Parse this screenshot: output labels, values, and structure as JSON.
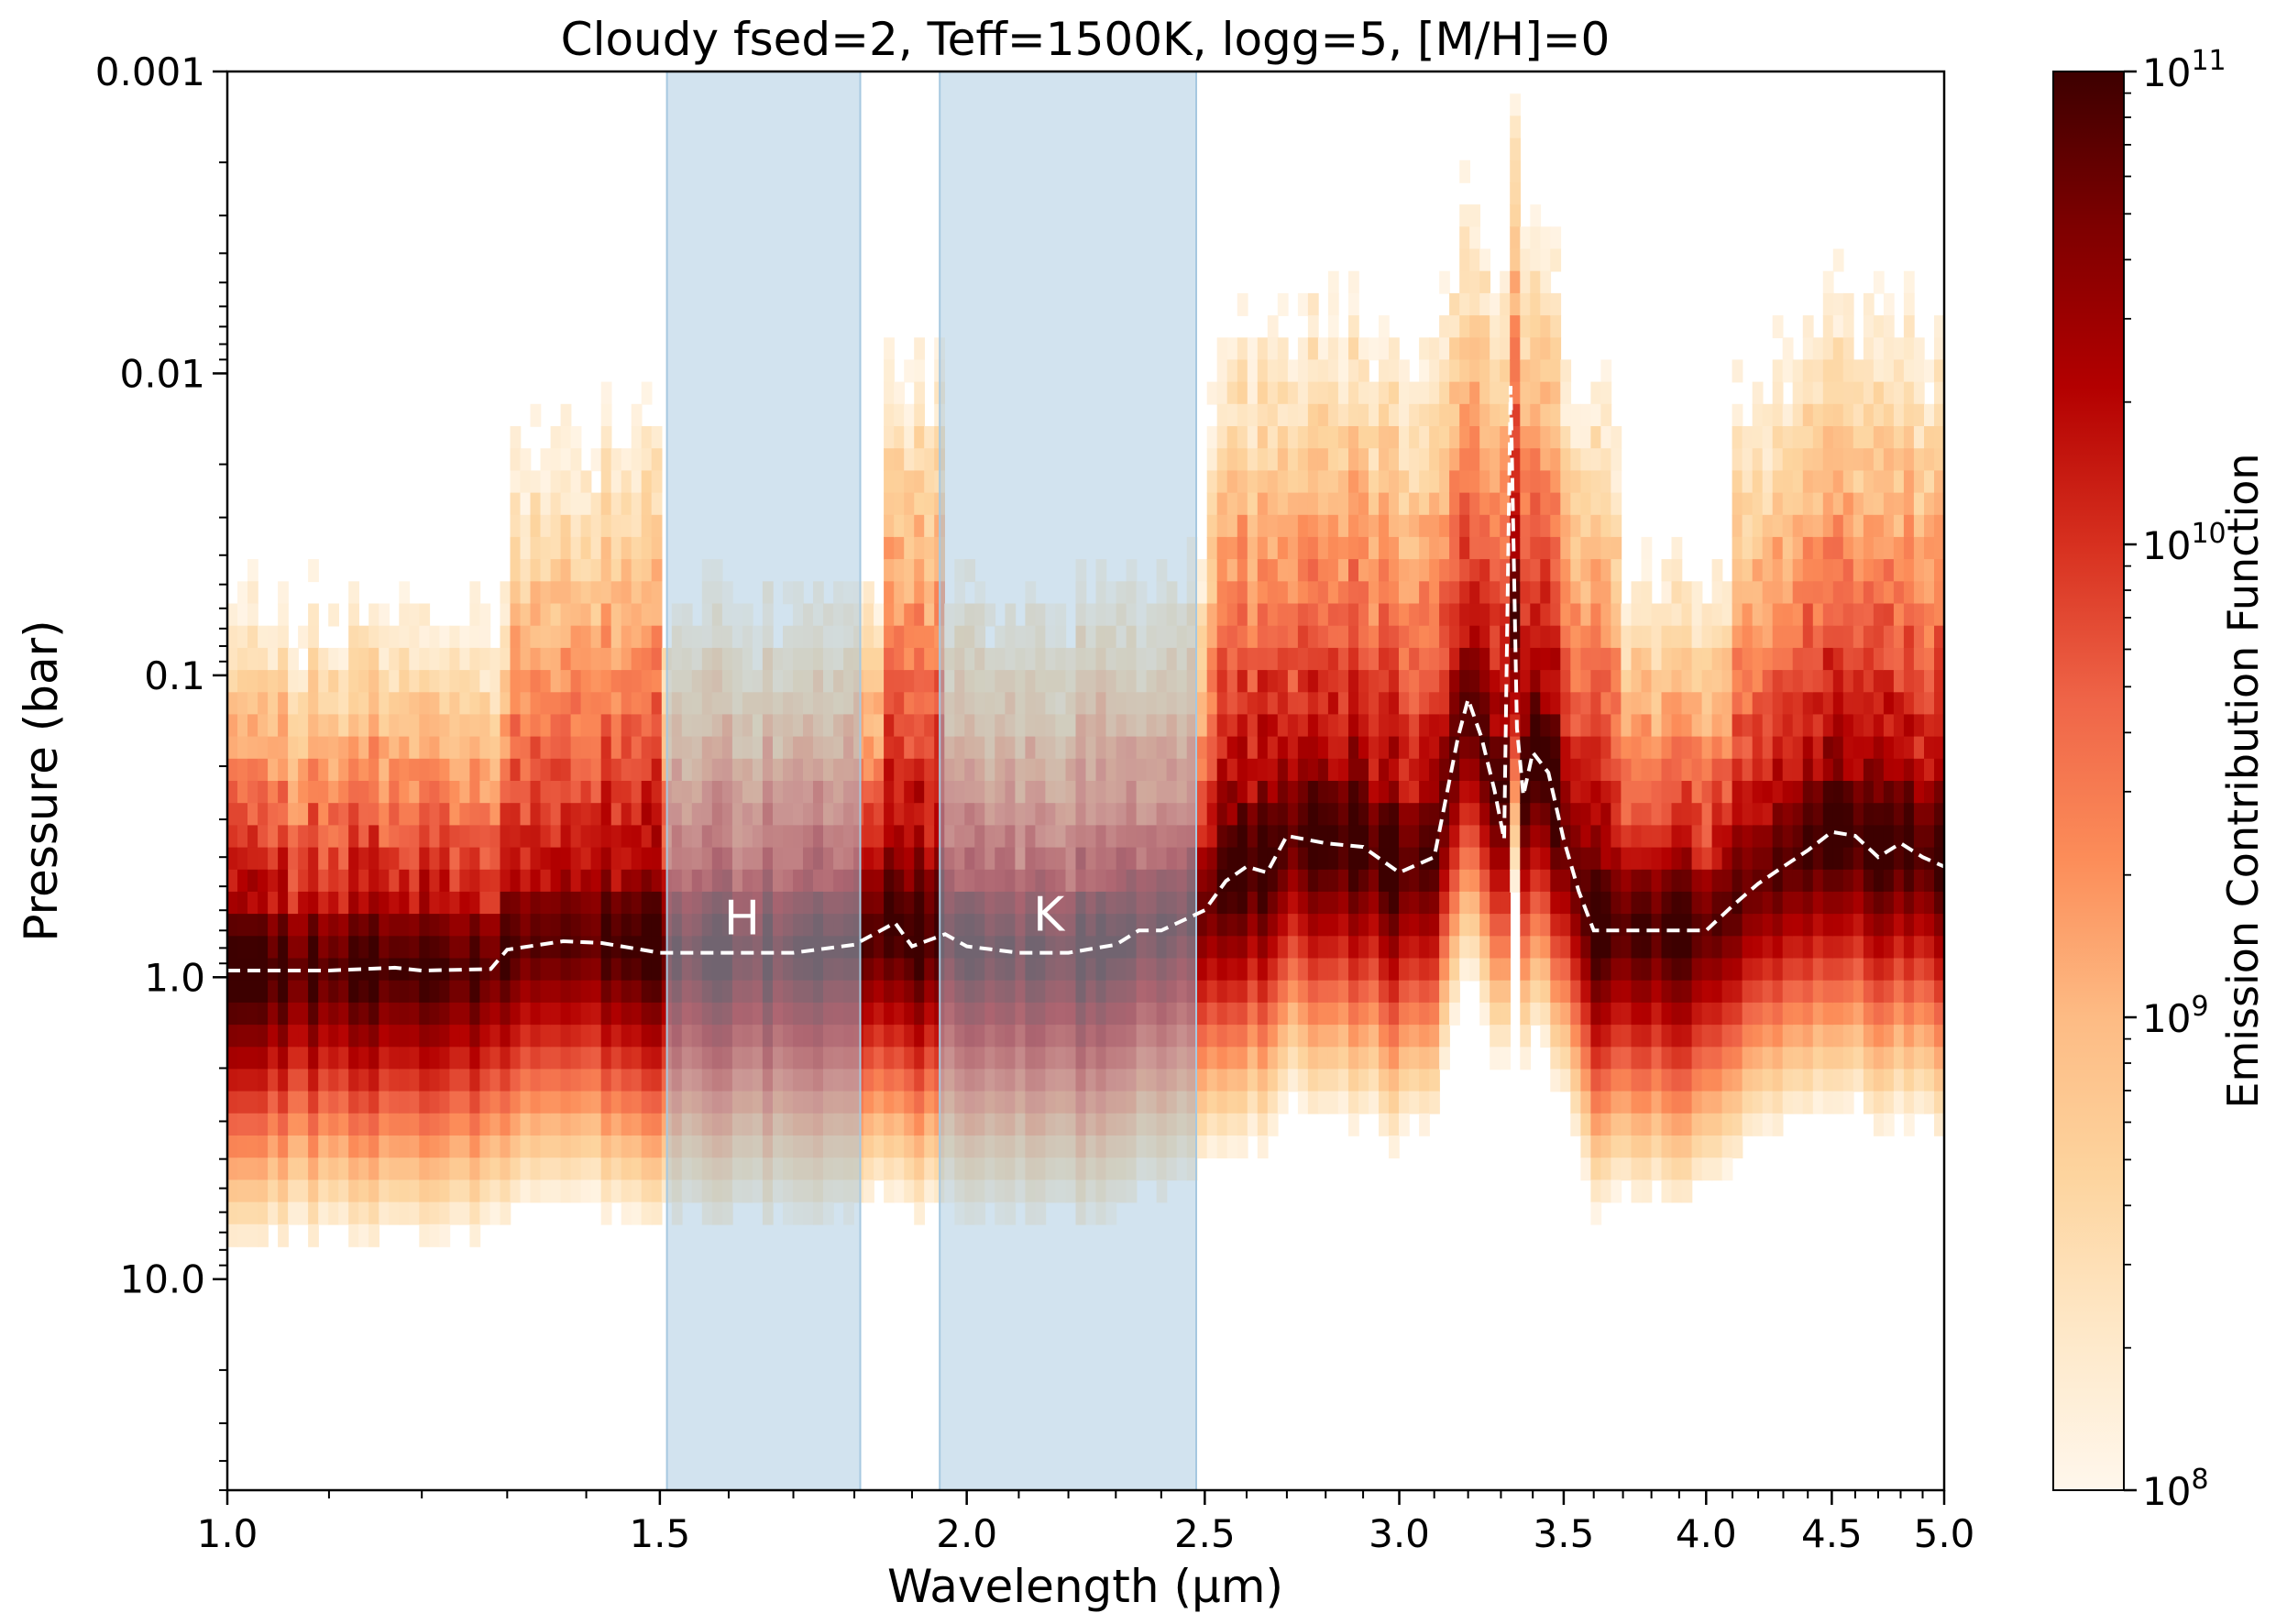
{
  "chart_data": {
    "type": "heatmap",
    "title": "Cloudy fsed=2, Teff=1500K, logg=5, [M/H]=0",
    "xlabel": "Wavelength (μm)",
    "ylabel": "Pressure (bar)",
    "x_scale": "log",
    "y_scale": "log",
    "y_inverted": true,
    "xlim": [
      1.0,
      5.0
    ],
    "ylim": [
      0.001,
      50
    ],
    "x_ticks": [
      1.0,
      1.5,
      2.0,
      2.5,
      3.0,
      3.5,
      4.0,
      4.5,
      5.0
    ],
    "x_tick_labels": [
      "1.0",
      "1.5",
      "2.0",
      "2.5",
      "3.0",
      "3.5",
      "4.0",
      "4.5",
      "5.0"
    ],
    "y_ticks": [
      0.001,
      0.01,
      0.1,
      1.0,
      10.0
    ],
    "y_tick_labels": [
      "0.001",
      "0.01",
      "0.1",
      "1.0",
      "10.0"
    ],
    "colorbar": {
      "label": "Emission Contribution Function",
      "scale": "log",
      "range": [
        100000000.0,
        100000000000.0
      ],
      "ticks": [
        {
          "value": 100000000.0,
          "base": "10",
          "exp": "8"
        },
        {
          "value": 1000000000.0,
          "base": "10",
          "exp": "9"
        },
        {
          "value": 10000000000.0,
          "base": "10",
          "exp": "10"
        },
        {
          "value": 100000000000.0,
          "base": "10",
          "exp": "11"
        }
      ],
      "colormap": "OrRd",
      "colors": [
        "#fff7ec",
        "#fee8c8",
        "#fdd49e",
        "#fdbb84",
        "#fc8d59",
        "#ef6548",
        "#d7301f",
        "#b30000",
        "#7f0000",
        "#3d0000"
      ]
    },
    "bands": [
      {
        "name": "H",
        "x_range": [
          1.51,
          1.81
        ],
        "color": "#a6c8e0"
      },
      {
        "name": "K",
        "x_range": [
          1.95,
          2.48
        ],
        "color": "#a6c8e0"
      }
    ],
    "series": [
      {
        "style": "dashed",
        "color": "#ffffff",
        "x": [
          1.0,
          1.1,
          1.17,
          1.2,
          1.28,
          1.3,
          1.37,
          1.42,
          1.5,
          1.6,
          1.7,
          1.8,
          1.87,
          1.9,
          1.96,
          2.0,
          2.1,
          2.2,
          2.3,
          2.35,
          2.4,
          2.5,
          2.55,
          2.6,
          2.65,
          2.7,
          2.8,
          2.9,
          3.0,
          3.1,
          3.17,
          3.2,
          3.24,
          3.28,
          3.31,
          3.33,
          3.35,
          3.37,
          3.4,
          3.45,
          3.5,
          3.55,
          3.6,
          3.7,
          3.8,
          4.0,
          4.1,
          4.2,
          4.3,
          4.4,
          4.5,
          4.6,
          4.7,
          4.8,
          4.9,
          5.0
        ],
        "y": [
          0.95,
          0.95,
          0.93,
          0.95,
          0.94,
          0.81,
          0.76,
          0.77,
          0.83,
          0.83,
          0.83,
          0.78,
          0.66,
          0.79,
          0.72,
          0.79,
          0.83,
          0.83,
          0.78,
          0.7,
          0.7,
          0.6,
          0.48,
          0.43,
          0.45,
          0.34,
          0.36,
          0.37,
          0.45,
          0.4,
          0.16,
          0.12,
          0.16,
          0.24,
          0.35,
          0.011,
          0.15,
          0.25,
          0.18,
          0.21,
          0.35,
          0.52,
          0.7,
          0.7,
          0.7,
          0.7,
          0.58,
          0.49,
          0.43,
          0.38,
          0.33,
          0.34,
          0.4,
          0.36,
          0.4,
          0.43
        ]
      }
    ],
    "annotations": [
      {
        "text": "H",
        "x": 1.62,
        "y": 0.72,
        "color": "#ffffff"
      },
      {
        "text": "K",
        "x": 2.16,
        "y": 0.7,
        "color": "#ffffff"
      }
    ]
  }
}
